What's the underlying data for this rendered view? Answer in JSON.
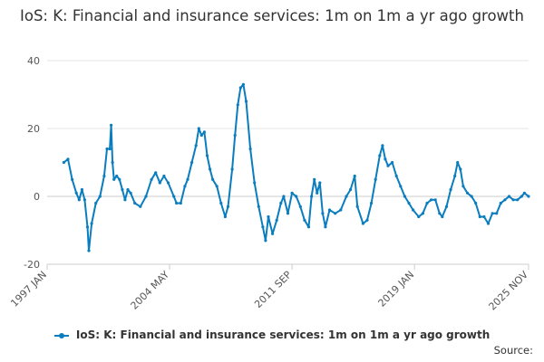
{
  "chart_data": {
    "type": "line",
    "title": "IoS: K: Financial and insurance services: 1m on 1m a yr ago growth",
    "xlabel": "",
    "ylabel": "",
    "ylim": [
      -20,
      40
    ],
    "yticks": [
      "40",
      "20",
      "0",
      "-20"
    ],
    "xticks": [
      "1997 JAN",
      "2004 MAY",
      "2011 SEP",
      "2019 JAN",
      "2025 NOV"
    ],
    "xlim": [
      "1997 JAN",
      "2025 NOV"
    ],
    "grid": true,
    "legend_position": "bottom",
    "color": "#0a7dbf",
    "series": [
      {
        "name": "IoS: K: Financial and insurance services: 1m on 1m a yr ago growth",
        "points": [
          [
            "1998 JAN",
            10
          ],
          [
            "1998 APR",
            11
          ],
          [
            "1998 JUL",
            5
          ],
          [
            "1998 OCT",
            1
          ],
          [
            "1998 DEC",
            -1
          ],
          [
            "1999 FEB",
            2
          ],
          [
            "1999 APR",
            -1
          ],
          [
            "1999 JUN",
            -9
          ],
          [
            "1999 JUL",
            -16
          ],
          [
            "1999 SEP",
            -8
          ],
          [
            "1999 DEC",
            -2
          ],
          [
            "2000 MAR",
            0
          ],
          [
            "2000 JUN",
            6
          ],
          [
            "2000 AUG",
            14
          ],
          [
            "2000 OCT",
            14
          ],
          [
            "2000 NOV",
            21
          ],
          [
            "2000 DEC",
            10
          ],
          [
            "2001 JAN",
            5
          ],
          [
            "2001 MAR",
            6
          ],
          [
            "2001 MAY",
            5
          ],
          [
            "2001 JUL",
            2
          ],
          [
            "2001 SEP",
            -1
          ],
          [
            "2001 NOV",
            2
          ],
          [
            "2002 JAN",
            1
          ],
          [
            "2002 APR",
            -2
          ],
          [
            "2002 AUG",
            -3
          ],
          [
            "2002 DEC",
            0
          ],
          [
            "2003 APR",
            5
          ],
          [
            "2003 JUL",
            7
          ],
          [
            "2003 OCT",
            4
          ],
          [
            "2004 JAN",
            6
          ],
          [
            "2004 APR",
            4
          ],
          [
            "2004 AUG",
            0
          ],
          [
            "2004 OCT",
            -2
          ],
          [
            "2005 JAN",
            -2
          ],
          [
            "2005 APR",
            3
          ],
          [
            "2005 JUN",
            5
          ],
          [
            "2005 SEP",
            10
          ],
          [
            "2005 DEC",
            15
          ],
          [
            "2006 FEB",
            20
          ],
          [
            "2006 APR",
            18
          ],
          [
            "2006 JUN",
            19
          ],
          [
            "2006 AUG",
            12
          ],
          [
            "2006 OCT",
            8
          ],
          [
            "2006 DEC",
            5
          ],
          [
            "2007 MAR",
            3
          ],
          [
            "2007 JUN",
            -2
          ],
          [
            "2007 SEP",
            -6
          ],
          [
            "2007 NOV",
            -3
          ],
          [
            "2008 FEB",
            8
          ],
          [
            "2008 APR",
            18
          ],
          [
            "2008 JUN",
            27
          ],
          [
            "2008 AUG",
            32
          ],
          [
            "2008 OCT",
            33
          ],
          [
            "2008 DEC",
            28
          ],
          [
            "2009 MAR",
            14
          ],
          [
            "2009 JUN",
            4
          ],
          [
            "2009 SEP",
            -3
          ],
          [
            "2009 DEC",
            -9
          ],
          [
            "2010 FEB",
            -13
          ],
          [
            "2010 APR",
            -6
          ],
          [
            "2010 JUL",
            -11
          ],
          [
            "2010 OCT",
            -7
          ],
          [
            "2011 JAN",
            -2
          ],
          [
            "2011 MAR",
            0
          ],
          [
            "2011 JUN",
            -5
          ],
          [
            "2011 SEP",
            1
          ],
          [
            "2011 DEC",
            0
          ],
          [
            "2012 MAR",
            -3
          ],
          [
            "2012 JUN",
            -7
          ],
          [
            "2012 SEP",
            -9
          ],
          [
            "2012 NOV",
            0
          ],
          [
            "2013 JAN",
            5
          ],
          [
            "2013 MAR",
            1
          ],
          [
            "2013 MAY",
            4
          ],
          [
            "2013 JUL",
            -5
          ],
          [
            "2013 SEP",
            -9
          ],
          [
            "2013 DEC",
            -4
          ],
          [
            "2014 APR",
            -5
          ],
          [
            "2014 AUG",
            -4
          ],
          [
            "2014 DEC",
            0
          ],
          [
            "2015 MAR",
            2
          ],
          [
            "2015 JUN",
            6
          ],
          [
            "2015 AUG",
            -3
          ],
          [
            "2015 DEC",
            -8
          ],
          [
            "2016 MAR",
            -7
          ],
          [
            "2016 JUN",
            -2
          ],
          [
            "2016 SEP",
            5
          ],
          [
            "2016 DEC",
            12
          ],
          [
            "2017 FEB",
            15
          ],
          [
            "2017 APR",
            11
          ],
          [
            "2017 JUN",
            9
          ],
          [
            "2017 SEP",
            10
          ],
          [
            "2017 DEC",
            6
          ],
          [
            "2018 MAR",
            3
          ],
          [
            "2018 JUN",
            0
          ],
          [
            "2018 SEP",
            -2
          ],
          [
            "2018 DEC",
            -4
          ],
          [
            "2019 APR",
            -6
          ],
          [
            "2019 JUL",
            -5
          ],
          [
            "2019 OCT",
            -2
          ],
          [
            "2020 JAN",
            -1
          ],
          [
            "2020 APR",
            -1
          ],
          [
            "2020 JUL",
            -5
          ],
          [
            "2020 SEP",
            -6
          ],
          [
            "2020 DEC",
            -3
          ],
          [
            "2021 MAR",
            2
          ],
          [
            "2021 JUN",
            6
          ],
          [
            "2021 AUG",
            10
          ],
          [
            "2021 OCT",
            8
          ],
          [
            "2021 DEC",
            3
          ],
          [
            "2022 MAR",
            1
          ],
          [
            "2022 JUN",
            0
          ],
          [
            "2022 SEP",
            -2
          ],
          [
            "2022 DEC",
            -6
          ],
          [
            "2023 MAR",
            -6
          ],
          [
            "2023 JUN",
            -8
          ],
          [
            "2023 SEP",
            -5
          ],
          [
            "2023 DEC",
            -5
          ],
          [
            "2024 MAR",
            -2
          ],
          [
            "2024 JUN",
            -1
          ],
          [
            "2024 SEP",
            0
          ],
          [
            "2024 DEC",
            -1
          ],
          [
            "2025 MAR",
            -1
          ],
          [
            "2025 JUN",
            0
          ],
          [
            "2025 AUG",
            1
          ],
          [
            "2025 NOV",
            0
          ]
        ]
      }
    ]
  },
  "footer": {
    "source_label": "Source:"
  }
}
